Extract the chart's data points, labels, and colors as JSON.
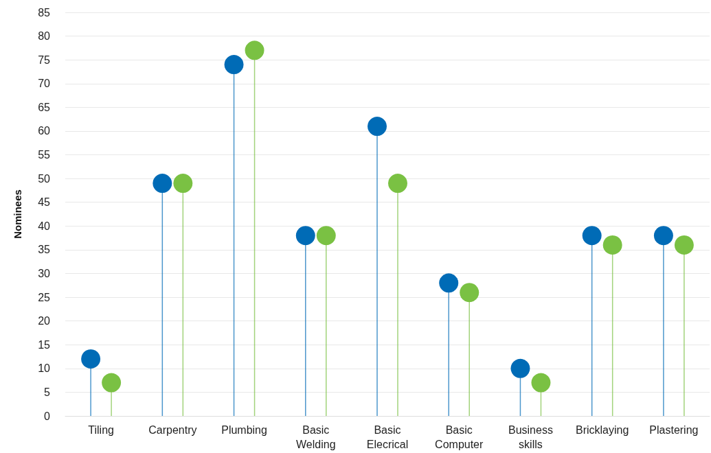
{
  "chart_data": {
    "type": "lollipop",
    "ylabel": "Nominees",
    "categories": [
      "Tiling",
      "Carpentry",
      "Plumbing",
      "Basic Welding",
      "Basic Elecrical",
      "Basic Computer",
      "Business skills",
      "Bricklaying",
      "Plastering"
    ],
    "series": [
      {
        "color": "#006bb6",
        "values": [
          12,
          49,
          74,
          38,
          61,
          28,
          10,
          38,
          38
        ]
      },
      {
        "color": "#7ac143",
        "values": [
          7,
          49,
          77,
          38,
          49,
          26,
          7,
          36,
          36
        ]
      }
    ],
    "ylim": [
      0,
      85
    ],
    "yticks": [
      0,
      5,
      10,
      15,
      20,
      25,
      30,
      35,
      40,
      45,
      50,
      55,
      60,
      65,
      70,
      75,
      80,
      85
    ],
    "grid": "y",
    "marker": "circle"
  }
}
